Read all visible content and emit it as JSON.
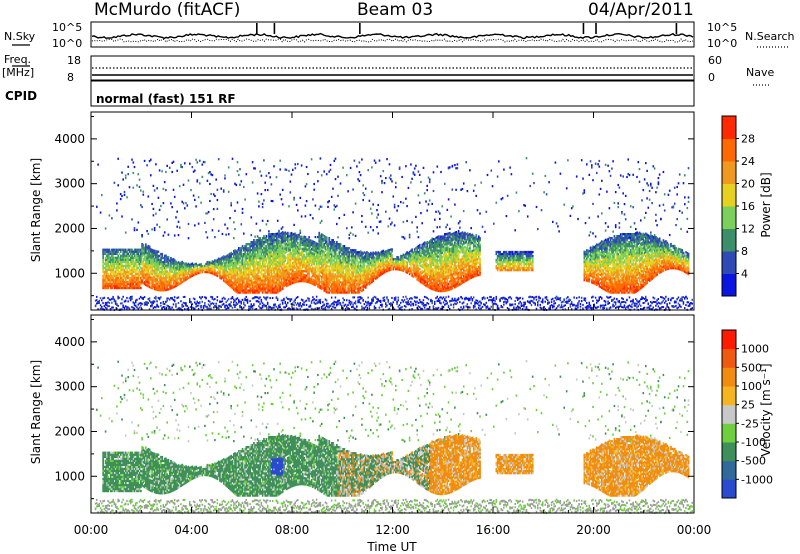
{
  "header": {
    "station": "McMurdo (fitACF)",
    "beam": "Beam 03",
    "date": "04/Apr/2011"
  },
  "top_panels": {
    "nsky_label": "N.Sky",
    "nsky_ticks": [
      "10^5",
      "10^0"
    ],
    "nsearch_label": "N.Search",
    "nsearch_ticks": [
      "10^5",
      "10^0"
    ],
    "freq_label": "Freq.",
    "freq_unit": "[MHz]",
    "freq_ticks": [
      "18",
      "8"
    ],
    "nave_label": "Nave",
    "nave_ticks": [
      "60",
      "0"
    ],
    "cpid_label": "CPID",
    "cpid_text": "normal (fast) 151 RF"
  },
  "chart_data": [
    {
      "type": "heatmap",
      "name": "power",
      "ylabel": "Slant Range [km]",
      "xlabel": "Time UT",
      "y_ticks": [
        1000,
        2000,
        3000,
        4000
      ],
      "ylim": [
        180,
        4600
      ],
      "xlim": [
        0,
        24
      ],
      "x_ticks": [
        "00:00",
        "04:00",
        "08:00",
        "12:00",
        "16:00",
        "20:00",
        "00:00"
      ],
      "colorbar": {
        "label": "Power [dB]",
        "ticks": [
          "4",
          "8",
          "12",
          "16",
          "20",
          "24",
          "28"
        ],
        "colors": [
          "#0a16e0",
          "#2e4ab4",
          "#3c8f6a",
          "#7ad05a",
          "#e6d020",
          "#f09820",
          "#ff6a00",
          "#ff2a00"
        ]
      }
    },
    {
      "type": "heatmap",
      "name": "velocity",
      "ylabel": "Slant Range [km]",
      "xlabel": "Time UT",
      "y_ticks": [
        1000,
        2000,
        3000,
        4000
      ],
      "ylim": [
        180,
        4600
      ],
      "xlim": [
        0,
        24
      ],
      "x_ticks": [
        "00:00",
        "04:00",
        "08:00",
        "12:00",
        "16:00",
        "20:00",
        "00:00"
      ],
      "colorbar": {
        "label": "Velocity [m s⁻¹]",
        "ticks": [
          "1000",
          "500",
          "100",
          "25",
          "-25",
          "-100",
          "-500",
          "-1000"
        ],
        "colors": [
          "#2a4bd0",
          "#2f6a9a",
          "#3f8f5a",
          "#6fcf3f",
          "#c8c8c8",
          "#f5b520",
          "#f08c10",
          "#f05a10",
          "#ff1a00"
        ]
      }
    }
  ],
  "colors": {
    "ground_scatter": "#9a9a9a",
    "frame": "#000000"
  }
}
